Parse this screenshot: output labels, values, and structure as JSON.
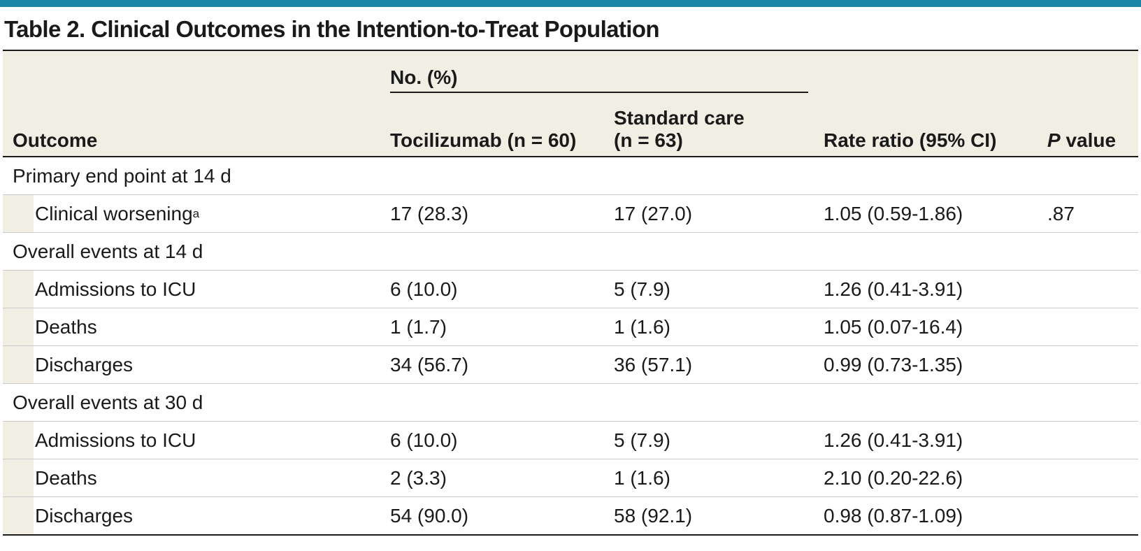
{
  "colors": {
    "accent_rule": "#1b86a8",
    "header_bg": "#f1eee3",
    "rule": "#1a1a1a",
    "row_divider": "#c9c9c9"
  },
  "title": "Table 2. Clinical Outcomes in the Intention-to-Treat Population",
  "header": {
    "group_label": "No. (%)",
    "outcome": "Outcome",
    "tocilizumab": "Tocilizumab (n = 60)",
    "standard_care_line1": "Standard care",
    "standard_care_line2": "(n = 63)",
    "rate_ratio": "Rate ratio (95% CI)",
    "p_value_italic": "P",
    "p_value_rest": " value"
  },
  "rows": [
    {
      "type": "section",
      "outcome": "Primary end point at 14 d"
    },
    {
      "type": "item",
      "outcome": "Clinical worsening",
      "footnote": "a",
      "tocilizumab": "17 (28.3)",
      "standard_care": "17 (27.0)",
      "rate_ratio": "1.05 (0.59-1.86)",
      "p_value": ".87"
    },
    {
      "type": "section",
      "outcome": "Overall events at 14 d"
    },
    {
      "type": "item",
      "outcome": "Admissions to ICU",
      "tocilizumab": "6 (10.0)",
      "standard_care": "5 (7.9)",
      "rate_ratio": "1.26 (0.41-3.91)",
      "p_value": ""
    },
    {
      "type": "item",
      "outcome": "Deaths",
      "tocilizumab": "1 (1.7)",
      "standard_care": "1 (1.6)",
      "rate_ratio": "1.05 (0.07-16.4)",
      "p_value": ""
    },
    {
      "type": "item",
      "outcome": "Discharges",
      "tocilizumab": "34 (56.7)",
      "standard_care": "36 (57.1)",
      "rate_ratio": "0.99 (0.73-1.35)",
      "p_value": ""
    },
    {
      "type": "section",
      "outcome": "Overall events at 30 d"
    },
    {
      "type": "item",
      "outcome": "Admissions to ICU",
      "tocilizumab": "6 (10.0)",
      "standard_care": "5 (7.9)",
      "rate_ratio": "1.26 (0.41-3.91)",
      "p_value": ""
    },
    {
      "type": "item",
      "outcome": "Deaths",
      "tocilizumab": "2 (3.3)",
      "standard_care": "1 (1.6)",
      "rate_ratio": "2.10 (0.20-22.6)",
      "p_value": ""
    },
    {
      "type": "item",
      "outcome": "Discharges",
      "tocilizumab": "54 (90.0)",
      "standard_care": "58 (92.1)",
      "rate_ratio": "0.98 (0.87-1.09)",
      "p_value": ""
    }
  ]
}
